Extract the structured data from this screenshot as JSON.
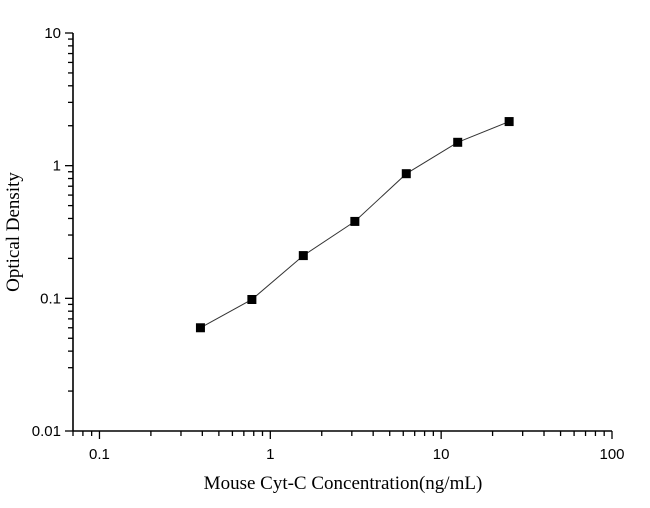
{
  "chart_data": {
    "type": "line",
    "title": "",
    "xlabel": "Mouse Cyt-C Concentration(ng/mL)",
    "ylabel": "Optical Density",
    "xscale": "log",
    "yscale": "log",
    "xlim": [
      0.07,
      100
    ],
    "ylim": [
      0.01,
      10
    ],
    "xticks": [
      "0.1",
      "1",
      "10",
      "100"
    ],
    "yticks": [
      "0.01",
      "0.1",
      "1",
      "10"
    ],
    "grid": false,
    "marker": "square",
    "color": "#000000",
    "series": [
      {
        "x": [
          0.39,
          0.78,
          1.56,
          3.125,
          6.25,
          12.5,
          25
        ],
        "y": [
          0.06,
          0.098,
          0.21,
          0.38,
          0.87,
          1.5,
          2.15
        ]
      }
    ]
  }
}
